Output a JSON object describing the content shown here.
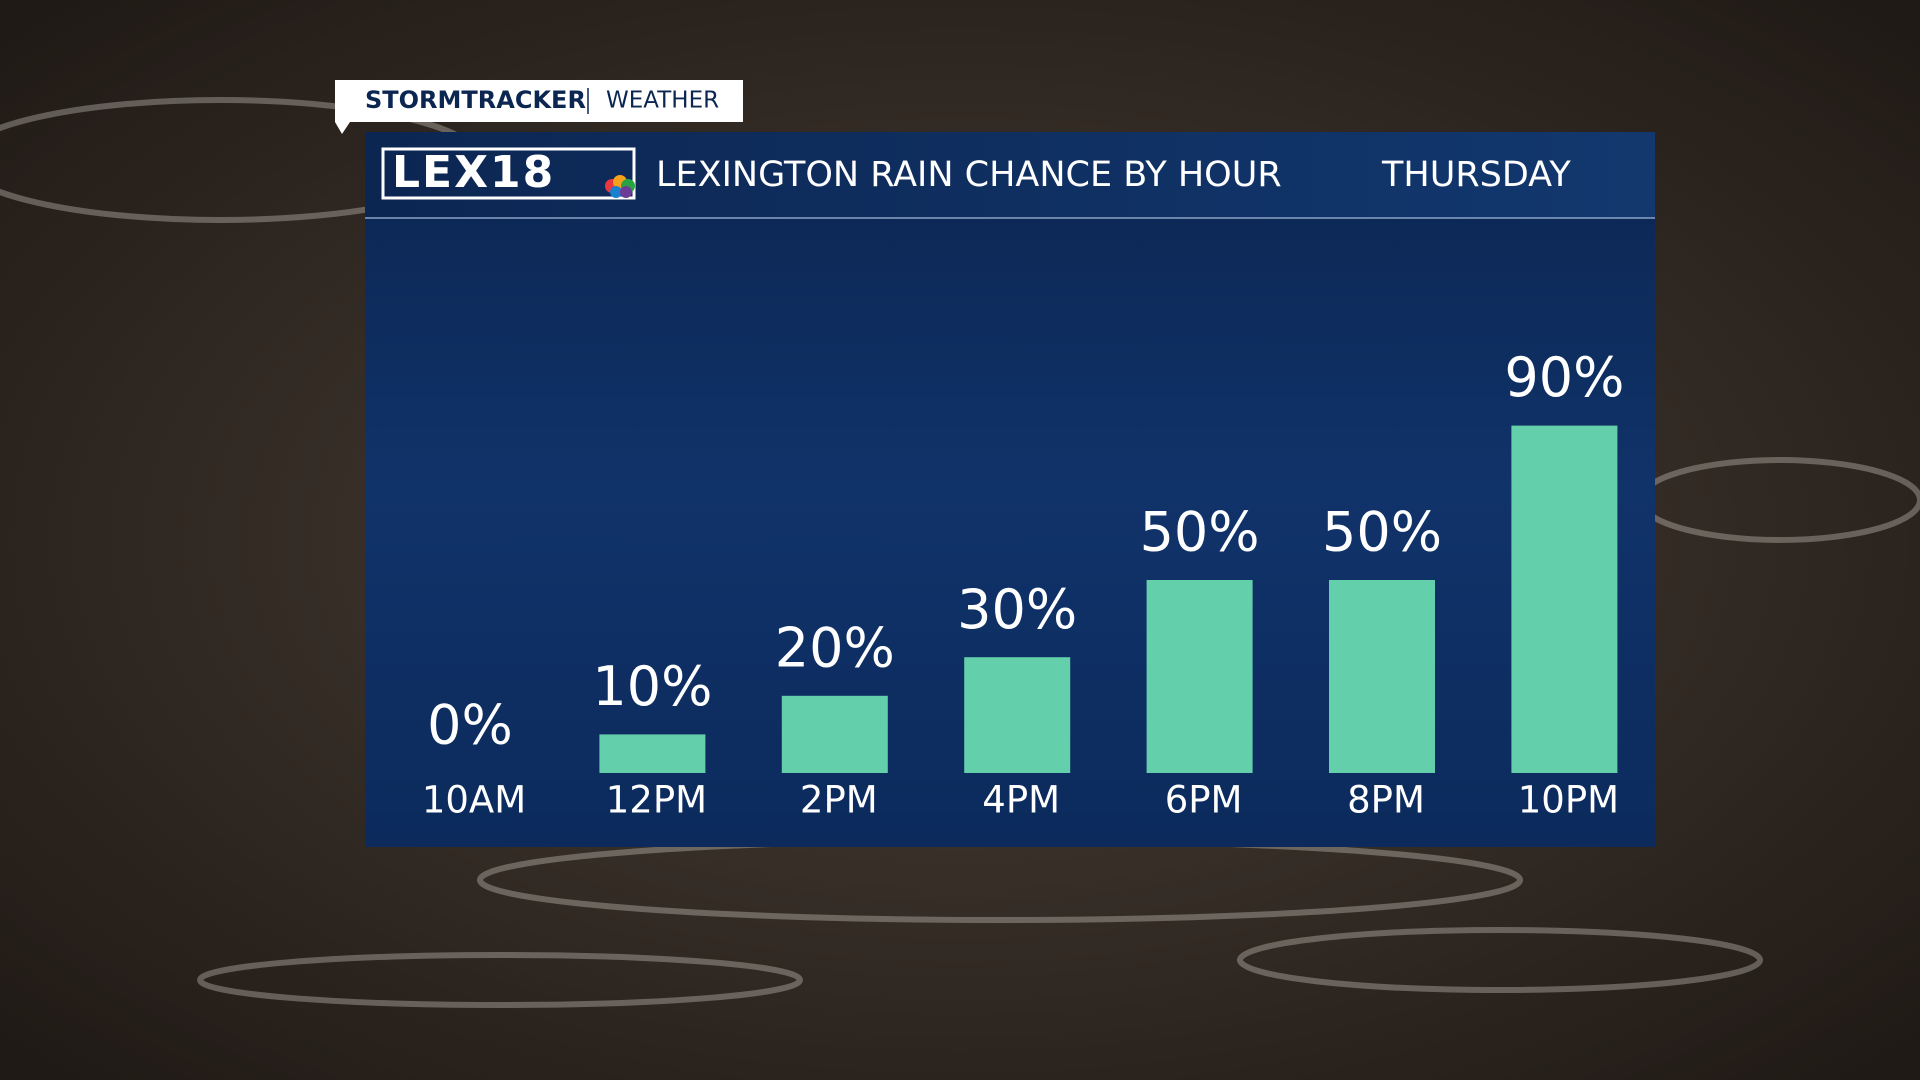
{
  "brand": {
    "tag": "STORMTRACKER",
    "section": "WEATHER",
    "station": "LEX18"
  },
  "chart_data": {
    "type": "bar",
    "title": "LEXINGTON RAIN CHANCE BY HOUR",
    "subtitle": "THURSDAY",
    "categories": [
      "10AM",
      "12PM",
      "2PM",
      "4PM",
      "6PM",
      "8PM",
      "10PM"
    ],
    "values": [
      0,
      10,
      20,
      30,
      50,
      50,
      90
    ],
    "value_labels": [
      "0%",
      "10%",
      "20%",
      "30%",
      "50%",
      "50%",
      "90%"
    ],
    "color": "#63cfab"
  }
}
